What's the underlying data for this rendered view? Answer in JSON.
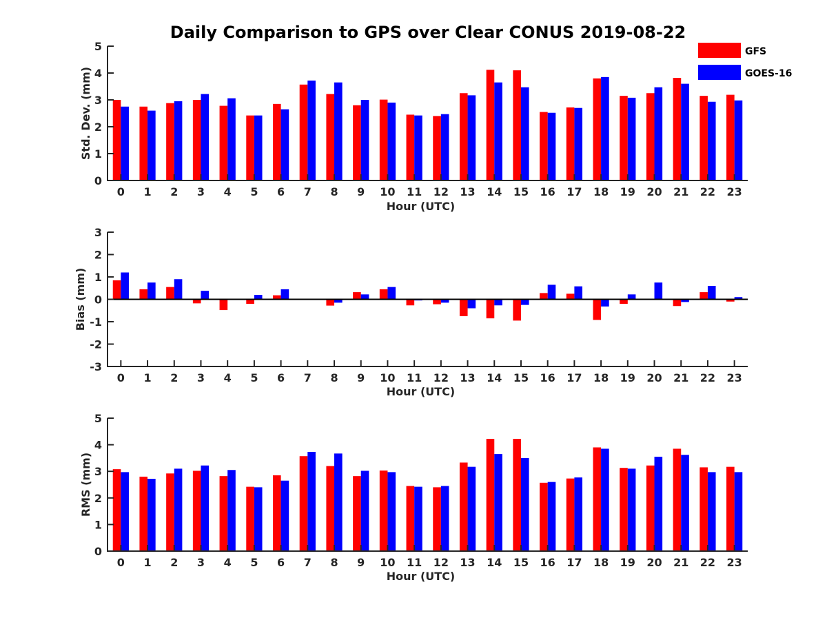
{
  "chart_data": {
    "title": "Daily Comparison to GPS over Clear CONUS 2019-08-22",
    "legend": {
      "placement": "top-right",
      "entries": [
        {
          "name": "GFS",
          "color": "#ff0000"
        },
        {
          "name": "GOES-16",
          "color": "#0000ff"
        }
      ]
    },
    "panels": [
      {
        "type": "bar",
        "xlabel": "Hour (UTC)",
        "ylabel": "Std. Dev. (mm)",
        "ylim": [
          0,
          5
        ],
        "yticks": [
          0,
          1,
          2,
          3,
          4,
          5
        ],
        "categories": [
          "0",
          "1",
          "2",
          "3",
          "4",
          "5",
          "6",
          "7",
          "8",
          "9",
          "10",
          "11",
          "12",
          "13",
          "14",
          "15",
          "16",
          "17",
          "18",
          "19",
          "20",
          "21",
          "22",
          "23"
        ],
        "series": [
          {
            "name": "GFS",
            "values": [
              3.0,
              2.75,
              2.88,
              3.0,
              2.78,
              2.42,
              2.85,
              3.57,
              3.22,
              2.8,
              3.01,
              2.45,
              2.4,
              3.25,
              4.12,
              4.1,
              2.55,
              2.72,
              3.8,
              3.15,
              3.25,
              3.82,
              3.15,
              3.19
            ]
          },
          {
            "name": "GOES-16",
            "values": [
              2.75,
              2.6,
              2.95,
              3.22,
              3.06,
              2.42,
              2.65,
              3.72,
              3.65,
              3.0,
              2.9,
              2.42,
              2.47,
              3.17,
              3.65,
              3.47,
              2.52,
              2.7,
              3.85,
              3.08,
              3.47,
              3.6,
              2.93,
              2.98
            ]
          }
        ]
      },
      {
        "type": "bar",
        "xlabel": "Hour (UTC)",
        "ylabel": "Bias (mm)",
        "ylim": [
          -3,
          3
        ],
        "yticks": [
          -3,
          -2,
          -1,
          0,
          1,
          2,
          3
        ],
        "categories": [
          "0",
          "1",
          "2",
          "3",
          "4",
          "5",
          "6",
          "7",
          "8",
          "9",
          "10",
          "11",
          "12",
          "13",
          "14",
          "15",
          "16",
          "17",
          "18",
          "19",
          "20",
          "21",
          "22",
          "23"
        ],
        "series": [
          {
            "name": "GFS",
            "values": [
              0.85,
              0.45,
              0.55,
              -0.18,
              -0.48,
              -0.2,
              0.18,
              0.0,
              -0.28,
              0.32,
              0.45,
              -0.27,
              -0.22,
              -0.75,
              -0.85,
              -0.95,
              0.28,
              0.25,
              -0.92,
              -0.2,
              0.0,
              -0.3,
              0.32,
              -0.1
            ]
          },
          {
            "name": "GOES-16",
            "values": [
              1.2,
              0.75,
              0.9,
              0.38,
              0.0,
              0.2,
              0.45,
              0.0,
              -0.15,
              0.22,
              0.55,
              -0.05,
              -0.15,
              -0.4,
              -0.27,
              -0.25,
              0.65,
              0.58,
              -0.32,
              0.22,
              0.75,
              -0.12,
              0.6,
              0.1
            ]
          }
        ]
      },
      {
        "type": "bar",
        "xlabel": "Hour (UTC)",
        "ylabel": "RMS (mm)",
        "ylim": [
          0,
          5
        ],
        "yticks": [
          0,
          1,
          2,
          3,
          4,
          5
        ],
        "categories": [
          "0",
          "1",
          "2",
          "3",
          "4",
          "5",
          "6",
          "7",
          "8",
          "9",
          "10",
          "11",
          "12",
          "13",
          "14",
          "15",
          "16",
          "17",
          "18",
          "19",
          "20",
          "21",
          "22",
          "23"
        ],
        "series": [
          {
            "name": "GFS",
            "values": [
              3.08,
              2.8,
              2.92,
              3.02,
              2.82,
              2.42,
              2.85,
              3.57,
              3.2,
              2.82,
              3.03,
              2.45,
              2.4,
              3.33,
              4.22,
              4.22,
              2.57,
              2.73,
              3.9,
              3.13,
              3.22,
              3.85,
              3.15,
              3.17
            ]
          },
          {
            "name": "GOES-16",
            "values": [
              2.97,
              2.72,
              3.1,
              3.22,
              3.05,
              2.4,
              2.65,
              3.73,
              3.67,
              3.02,
              2.97,
              2.42,
              2.45,
              3.17,
              3.65,
              3.5,
              2.6,
              2.77,
              3.85,
              3.1,
              3.55,
              3.62,
              2.97,
              2.97
            ]
          }
        ]
      }
    ]
  }
}
